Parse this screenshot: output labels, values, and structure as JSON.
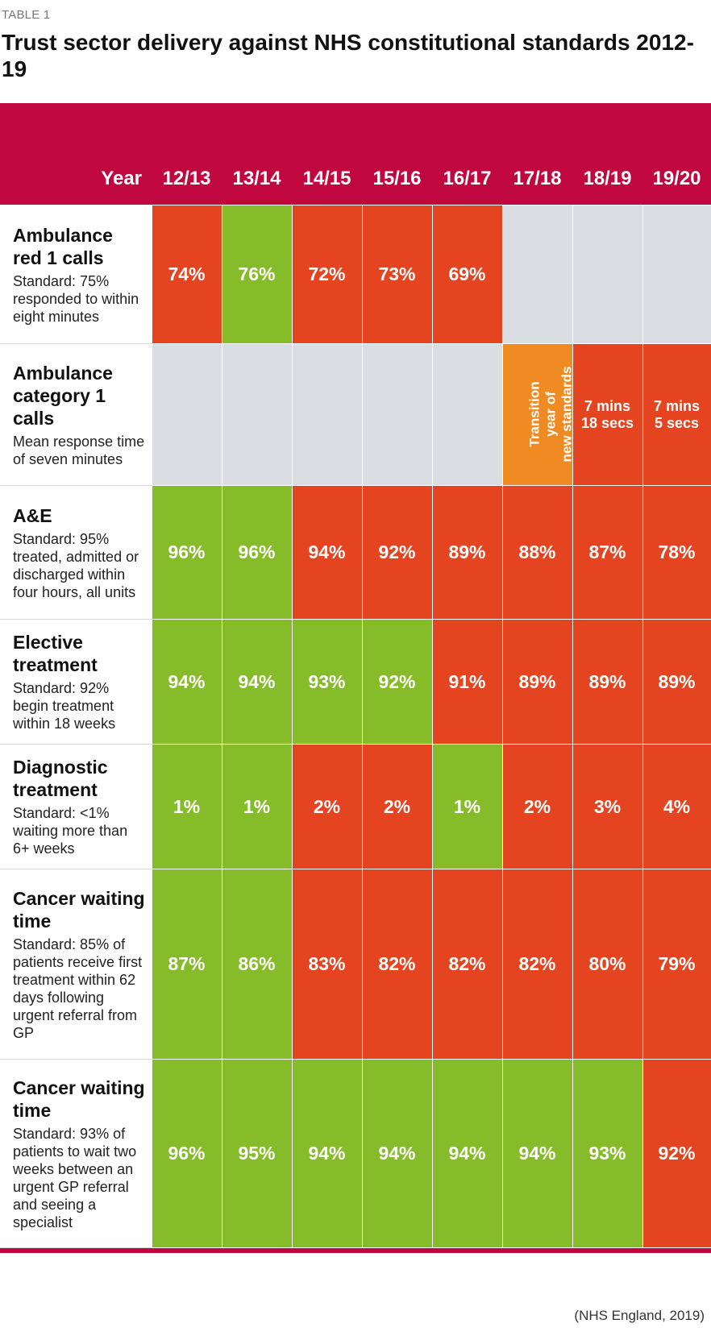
{
  "table_label": "TABLE 1",
  "title": "Trust sector delivery against NHS constitutional standards 2012-19",
  "source": "(NHS England, 2019)",
  "colors": {
    "header": "#c0073f",
    "met": "#86bb29",
    "missed": "#e44420",
    "transition": "#f08a22",
    "not_applicable": "#dadde1"
  },
  "chart_data": {
    "type": "table",
    "year_header": "Year",
    "columns": [
      "12/13",
      "13/14",
      "14/15",
      "15/16",
      "16/17",
      "17/18",
      "18/19",
      "19/20"
    ],
    "rows": [
      {
        "name": "Ambulance red 1 calls",
        "description": "Standard: 75% responded to within eight minutes",
        "values": [
          "74%",
          "76%",
          "72%",
          "73%",
          "69%",
          "",
          "",
          ""
        ],
        "status": [
          "missed",
          "met",
          "missed",
          "missed",
          "missed",
          "not_applicable",
          "not_applicable",
          "not_applicable"
        ]
      },
      {
        "name": "Ambulance category 1 calls",
        "description": "Mean response time of seven minutes",
        "values": [
          "",
          "",
          "",
          "",
          "",
          "Transition year of new standards",
          "7 mins 18 secs",
          "7 mins 5 secs"
        ],
        "status": [
          "not_applicable",
          "not_applicable",
          "not_applicable",
          "not_applicable",
          "not_applicable",
          "transition",
          "missed",
          "missed"
        ]
      },
      {
        "name": "A&E",
        "description": "Standard: 95% treated, admitted or discharged within four hours, all units",
        "values": [
          "96%",
          "96%",
          "94%",
          "92%",
          "89%",
          "88%",
          "87%",
          "78%"
        ],
        "status": [
          "met",
          "met",
          "missed",
          "missed",
          "missed",
          "missed",
          "missed",
          "missed"
        ]
      },
      {
        "name": "Elective treatment",
        "description": "Standard: 92% begin treatment within 18 weeks",
        "values": [
          "94%",
          "94%",
          "93%",
          "92%",
          "91%",
          "89%",
          "89%",
          "89%"
        ],
        "status": [
          "met",
          "met",
          "met",
          "met",
          "missed",
          "missed",
          "missed",
          "missed"
        ]
      },
      {
        "name": "Diagnostic treatment",
        "description": "Standard: <1% waiting more than 6+ weeks",
        "values": [
          "1%",
          "1%",
          "2%",
          "2%",
          "1%",
          "2%",
          "3%",
          "4%"
        ],
        "status": [
          "met",
          "met",
          "missed",
          "missed",
          "met",
          "missed",
          "missed",
          "missed"
        ]
      },
      {
        "name": "Cancer waiting time",
        "description": "Standard: 85% of patients receive first treatment within 62 days following urgent referral from GP",
        "values": [
          "87%",
          "86%",
          "83%",
          "82%",
          "82%",
          "82%",
          "80%",
          "79%"
        ],
        "status": [
          "met",
          "met",
          "missed",
          "missed",
          "missed",
          "missed",
          "missed",
          "missed"
        ]
      },
      {
        "name": "Cancer waiting time",
        "description": "Standard: 93% of patients to wait two weeks between an urgent GP referral and seeing a specialist",
        "values": [
          "96%",
          "95%",
          "94%",
          "94%",
          "94%",
          "94%",
          "93%",
          "92%"
        ],
        "status": [
          "met",
          "met",
          "met",
          "met",
          "met",
          "met",
          "met",
          "missed"
        ]
      }
    ]
  }
}
